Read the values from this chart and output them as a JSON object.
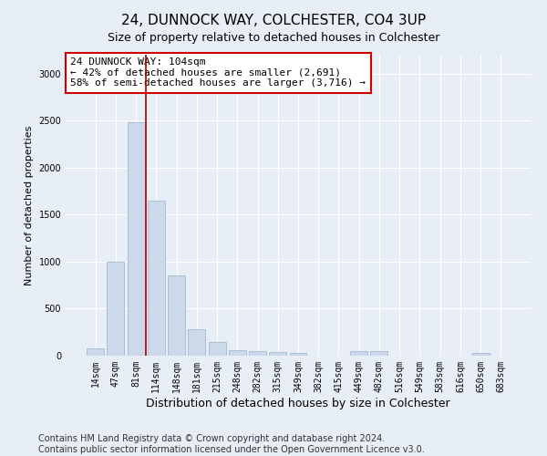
{
  "title": "24, DUNNOCK WAY, COLCHESTER, CO4 3UP",
  "subtitle": "Size of property relative to detached houses in Colchester",
  "xlabel": "Distribution of detached houses by size in Colchester",
  "ylabel": "Number of detached properties",
  "bar_color": "#ccd9ea",
  "bar_edge_color": "#9ab0cc",
  "vline_color": "#aa0000",
  "annotation_text": "24 DUNNOCK WAY: 104sqm\n← 42% of detached houses are smaller (2,691)\n58% of semi-detached houses are larger (3,716) →",
  "annotation_box_color": "white",
  "annotation_border_color": "#cc0000",
  "categories": [
    "14sqm",
    "47sqm",
    "81sqm",
    "114sqm",
    "148sqm",
    "181sqm",
    "215sqm",
    "248sqm",
    "282sqm",
    "315sqm",
    "349sqm",
    "382sqm",
    "415sqm",
    "449sqm",
    "482sqm",
    "516sqm",
    "549sqm",
    "583sqm",
    "616sqm",
    "650sqm",
    "683sqm"
  ],
  "values": [
    75,
    1000,
    2480,
    1650,
    850,
    280,
    150,
    60,
    50,
    40,
    30,
    0,
    0,
    45,
    45,
    0,
    0,
    0,
    0,
    30,
    0
  ],
  "vline_x": 2.5,
  "ylim": [
    0,
    3200
  ],
  "yticks": [
    0,
    500,
    1000,
    1500,
    2000,
    2500,
    3000
  ],
  "background_color": "#e8eef5",
  "plot_bg_color": "#e8eef5",
  "footer_text": "Contains HM Land Registry data © Crown copyright and database right 2024.\nContains public sector information licensed under the Open Government Licence v3.0.",
  "title_fontsize": 11,
  "xlabel_fontsize": 9,
  "ylabel_fontsize": 8,
  "tick_fontsize": 7,
  "footer_fontsize": 7
}
